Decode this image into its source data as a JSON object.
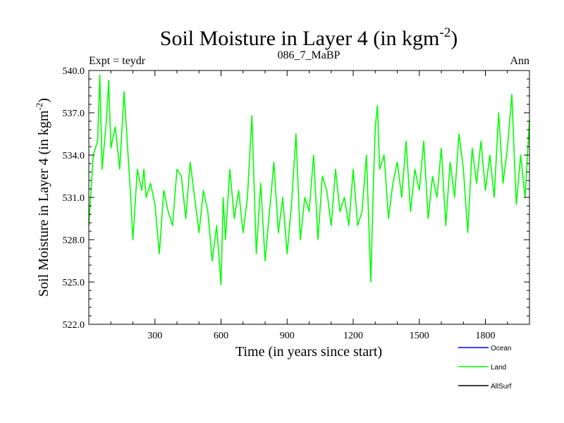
{
  "chart_data": {
    "type": "line",
    "title": "Soil Moisture in Layer 4 (in kgm",
    "title_superscript": "-2",
    "title_suffix": ")",
    "subtitle_left": "Expt = teydr",
    "subtitle_center": "086_7_MaBP",
    "subtitle_right": "Ann",
    "xlabel": "Time (in years since start)",
    "ylabel": "Soil Moisture in Layer 4 (in kgm",
    "ylabel_superscript": "-2",
    "ylabel_suffix": ")",
    "xlim": [
      0,
      2000
    ],
    "ylim": [
      522.0,
      540.0
    ],
    "xticks": [
      300,
      600,
      900,
      1200,
      1500,
      1800
    ],
    "xtick_labels": [
      "300",
      "600",
      "900",
      "1200",
      "1500",
      "1800"
    ],
    "yticks": [
      522.0,
      525.0,
      528.0,
      531.0,
      534.0,
      537.0,
      540.0
    ],
    "ytick_labels": [
      "522.0",
      "525.0",
      "528.0",
      "531.0",
      "534.0",
      "537.0",
      "540.0"
    ],
    "legend_placement": "bottom-right",
    "series": [
      {
        "name": "Ocean",
        "color": "#0000ff",
        "x": [],
        "values": []
      },
      {
        "name": "Land",
        "color": "#00ff00",
        "x": [
          0,
          20,
          40,
          50,
          60,
          80,
          90,
          100,
          120,
          140,
          160,
          180,
          190,
          200,
          220,
          240,
          250,
          260,
          280,
          300,
          320,
          340,
          360,
          380,
          400,
          420,
          440,
          460,
          480,
          500,
          520,
          540,
          560,
          580,
          600,
          610,
          620,
          640,
          660,
          680,
          700,
          720,
          740,
          760,
          780,
          800,
          820,
          840,
          860,
          880,
          900,
          920,
          940,
          960,
          980,
          1000,
          1020,
          1040,
          1060,
          1080,
          1100,
          1120,
          1140,
          1160,
          1180,
          1200,
          1220,
          1240,
          1260,
          1280,
          1290,
          1300,
          1310,
          1320,
          1340,
          1360,
          1380,
          1400,
          1420,
          1440,
          1460,
          1480,
          1500,
          1520,
          1540,
          1560,
          1580,
          1600,
          1620,
          1640,
          1660,
          1680,
          1700,
          1720,
          1740,
          1760,
          1780,
          1800,
          1820,
          1840,
          1860,
          1880,
          1900,
          1920,
          1940,
          1960,
          1980,
          2000
        ],
        "values": [
          529.0,
          534.0,
          535.0,
          539.7,
          533.0,
          536.5,
          539.3,
          534.5,
          536.0,
          533.0,
          538.5,
          533.5,
          531.0,
          528.0,
          533.0,
          531.5,
          533.0,
          531.0,
          532.0,
          530.5,
          527.0,
          531.5,
          530.0,
          529.0,
          533.0,
          532.5,
          529.5,
          533.5,
          531.0,
          528.5,
          531.5,
          530.0,
          526.5,
          529.0,
          524.8,
          531.0,
          528.0,
          533.0,
          529.5,
          531.5,
          528.5,
          531.0,
          536.8,
          527.0,
          532.0,
          526.5,
          530.0,
          533.5,
          528.5,
          531.0,
          527.0,
          530.5,
          535.5,
          528.0,
          531.0,
          530.0,
          534.0,
          528.0,
          532.5,
          531.5,
          529.0,
          533.0,
          530.0,
          531.0,
          529.0,
          533.0,
          529.0,
          530.0,
          534.0,
          525.0,
          531.0,
          536.0,
          537.5,
          533.0,
          534.0,
          529.5,
          532.0,
          533.5,
          531.0,
          535.0,
          530.0,
          533.0,
          531.5,
          535.0,
          529.5,
          532.5,
          531.0,
          534.5,
          529.0,
          533.5,
          531.0,
          535.5,
          533.0,
          528.5,
          534.5,
          532.0,
          535.0,
          531.5,
          534.0,
          531.0,
          537.0,
          532.0,
          534.5,
          538.3,
          530.5,
          534.0,
          531.0,
          536.5
        ]
      },
      {
        "name": "AllSurf",
        "color": "#000000",
        "x": [],
        "values": []
      }
    ]
  }
}
